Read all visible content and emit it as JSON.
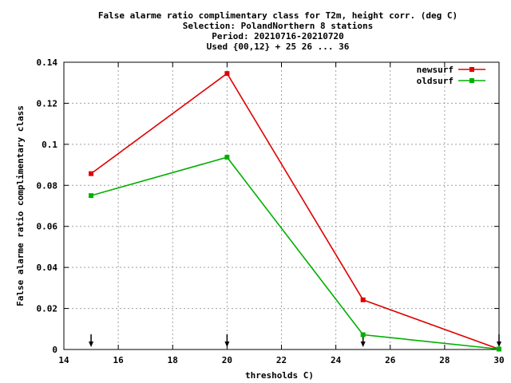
{
  "chart_data": {
    "type": "line",
    "title_lines": [
      "False alarme ratio complimentary class  for T2m, height corr. (deg C)",
      "Selection: PolandNorthern      8 stations",
      "Period: 20210716-20210720",
      "Used {00,12} + 25 26 ... 36"
    ],
    "xlabel": "thresholds C)",
    "ylabel": "False alarme ratio complimentary class",
    "xlim": [
      14,
      30
    ],
    "ylim": [
      0,
      0.14
    ],
    "x_ticks": [
      14,
      16,
      18,
      20,
      22,
      24,
      26,
      28,
      30
    ],
    "y_ticks": [
      0,
      0.02,
      0.04,
      0.06,
      0.08,
      0.1,
      0.12,
      0.14
    ],
    "y_tick_labels": [
      "0",
      "0.02",
      "0.04",
      "0.06",
      "0.08",
      "0.1",
      "0.12",
      "0.14"
    ],
    "grid": true,
    "legend_position": "top-right",
    "series": [
      {
        "name": "newsurf",
        "color": "#e00000",
        "x": [
          15,
          20,
          25,
          30
        ],
        "y": [
          0.0857,
          0.1345,
          0.0242,
          0.0002
        ]
      },
      {
        "name": "oldsurf",
        "color": "#00b000",
        "x": [
          15,
          20,
          25,
          30
        ],
        "y": [
          0.075,
          0.0937,
          0.0072,
          0.0002
        ]
      }
    ],
    "arrow_x": [
      15,
      20,
      25,
      30
    ]
  }
}
